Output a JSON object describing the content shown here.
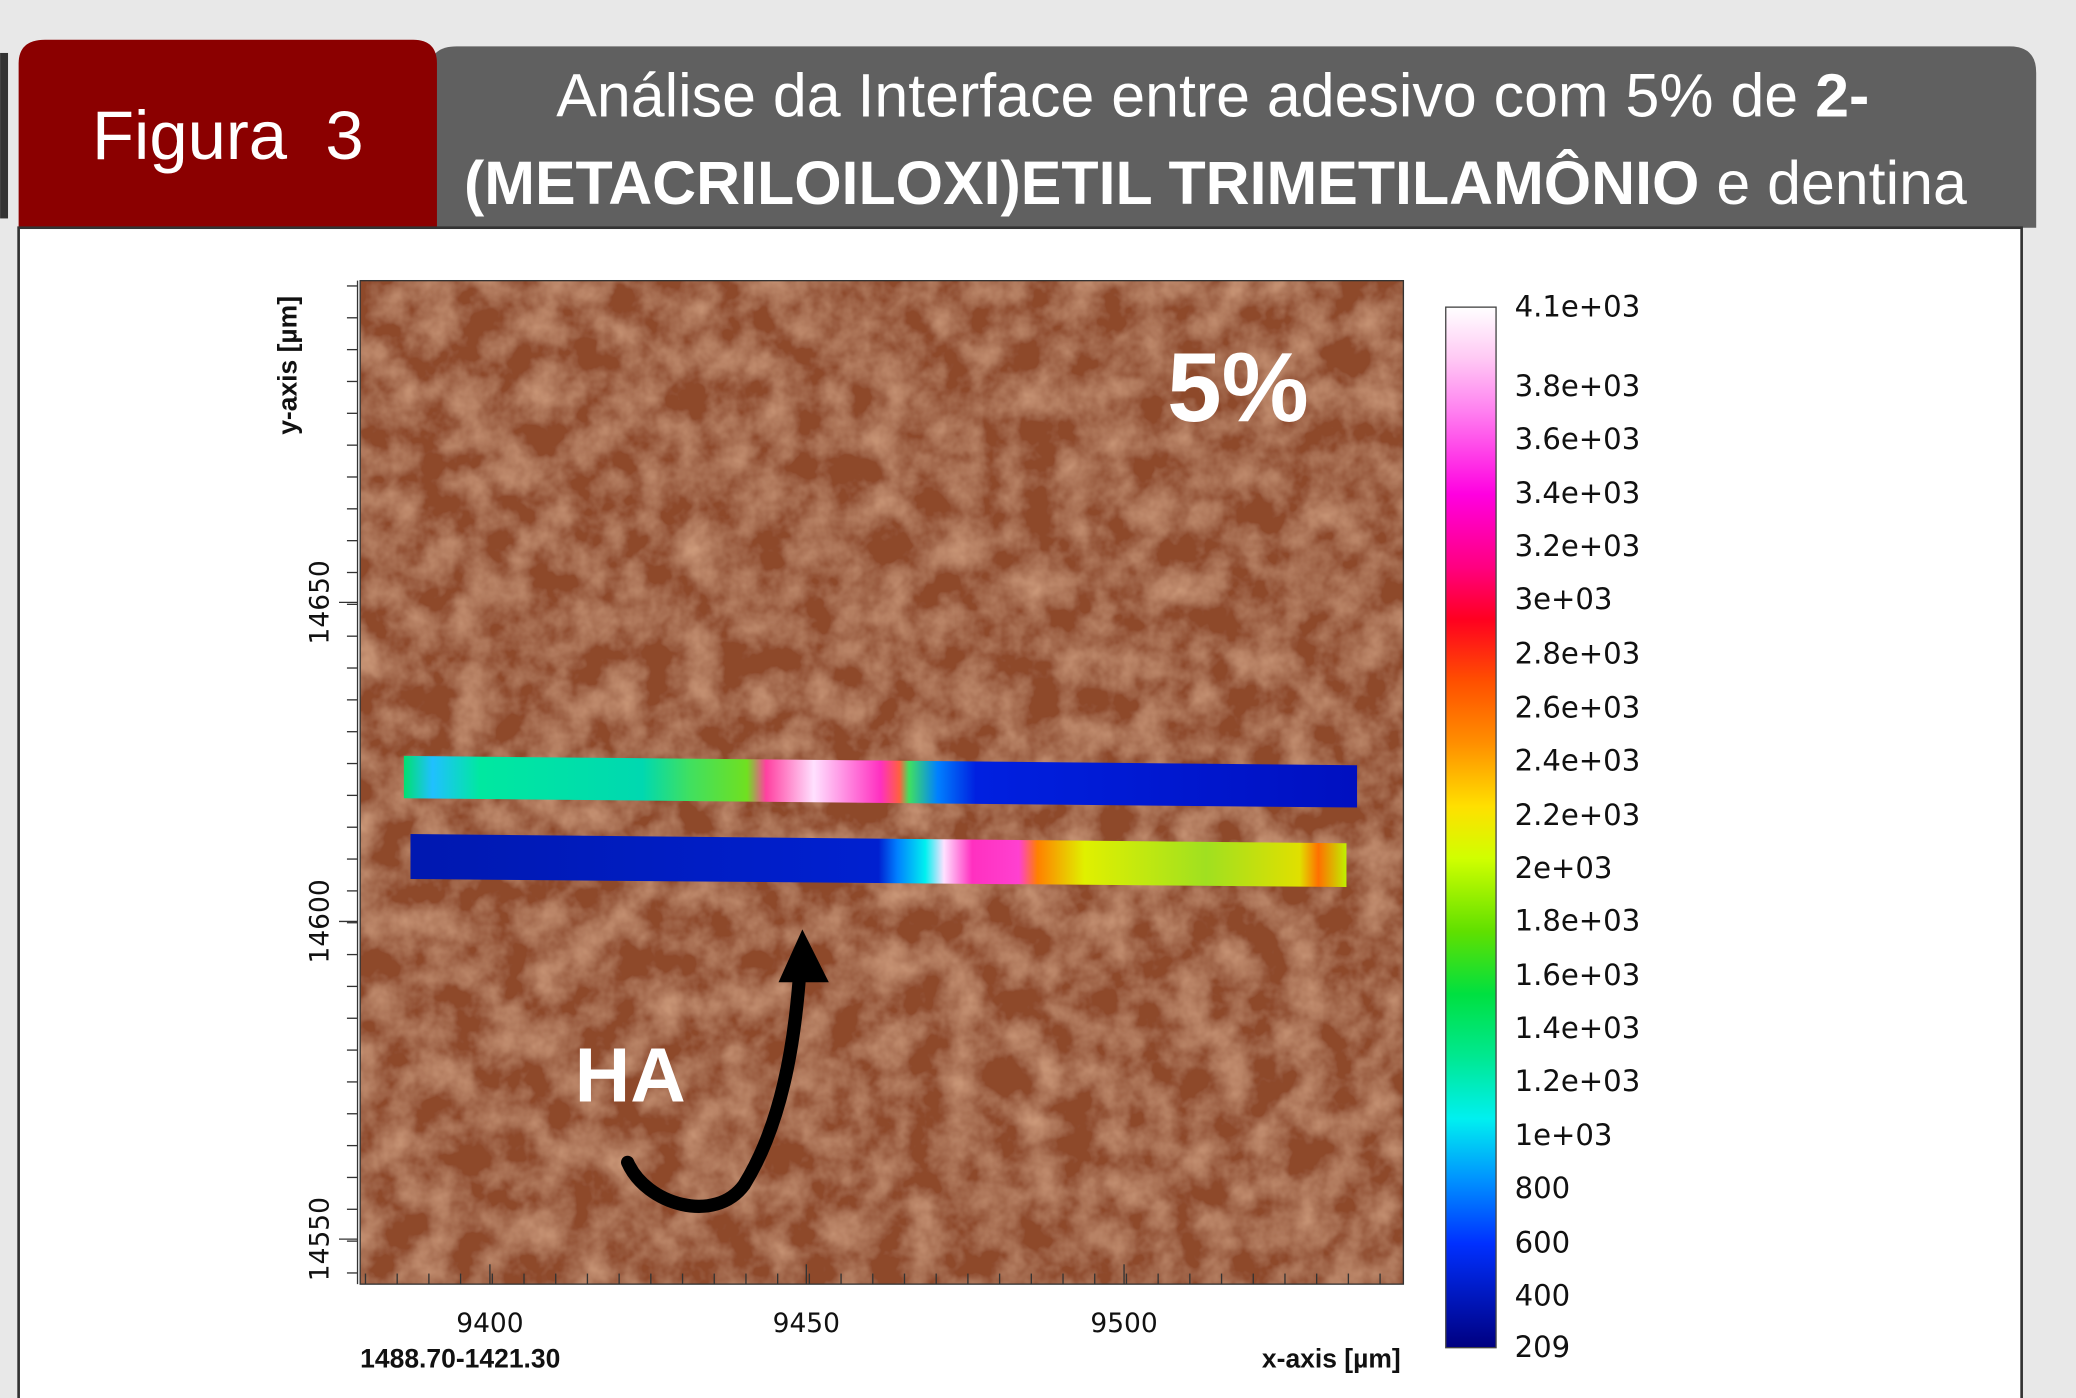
{
  "header": {
    "label": "Figura  3",
    "title_line_1": "Análise da Interface entre adesivo com 5% de",
    "title_bold_1": "2-",
    "title_bold_2": "(METACRILOILOXI)ETIL TRIMETILAMÔNIO",
    "title_end": "e dentina"
  },
  "figure": {
    "y_axis_label": "y-axis [µm]",
    "x_axis_label": "x-axis [µm]",
    "corner_label": "1488.70-1421.30",
    "annotation_percent": "5%",
    "annotation_ha": "HA",
    "x_ticks": [
      "9400",
      "9450",
      "9500"
    ],
    "y_ticks": [
      "14550",
      "14600",
      "14650"
    ],
    "colorbar_labels": [
      "4.1e+03",
      "3.8e+03",
      "3.6e+03",
      "3.4e+03",
      "3.2e+03",
      "3e+03",
      "2.8e+03",
      "2.6e+03",
      "2.4e+03",
      "2.2e+03",
      "2e+03",
      "1.8e+03",
      "1.6e+03",
      "1.4e+03",
      "1.2e+03",
      "1e+03",
      "800",
      "600",
      "400",
      "209"
    ]
  }
}
